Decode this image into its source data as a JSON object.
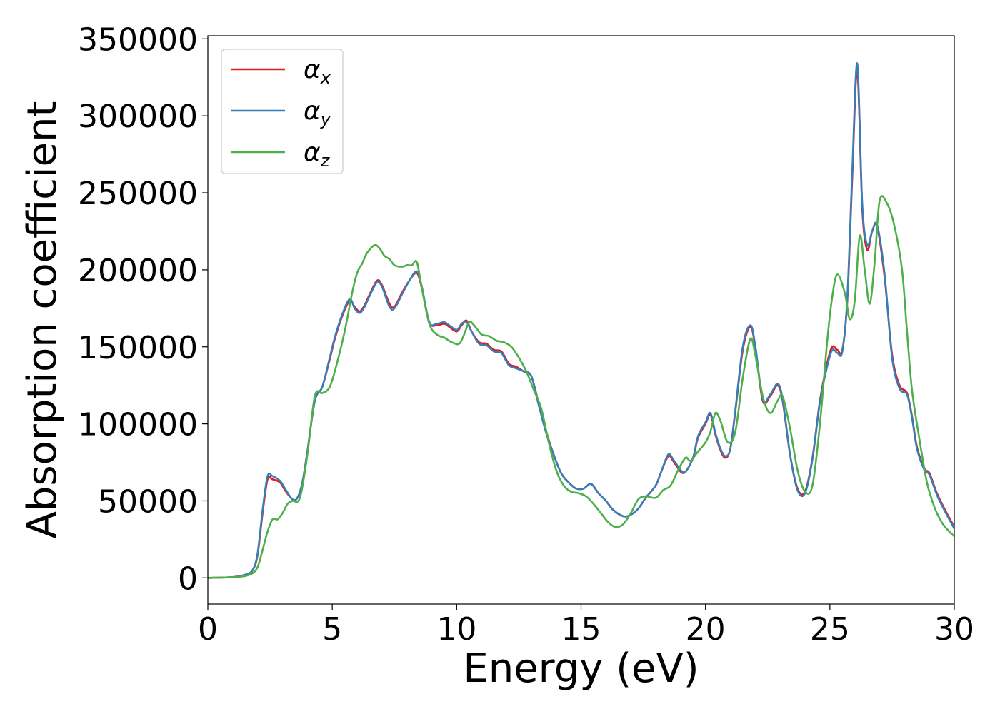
{
  "chart_data": {
    "type": "line",
    "xlabel": "Energy (eV)",
    "ylabel": "Absorption coefficient",
    "xlim": [
      0,
      30
    ],
    "ylim": [
      -17000,
      352000
    ],
    "xticks": [
      "0",
      "5",
      "10",
      "15",
      "20",
      "25",
      "30"
    ],
    "yticks": [
      "0",
      "50000",
      "100000",
      "150000",
      "200000",
      "250000",
      "300000",
      "350000"
    ],
    "grid": false,
    "legend_position": "top-left",
    "series": [
      {
        "name": "α",
        "sub": "x",
        "color": "#e41a1c",
        "x": [
          0,
          1,
          1.5,
          1.8,
          2.0,
          2.2,
          2.4,
          2.6,
          2.9,
          3.1,
          3.4,
          3.6,
          3.8,
          4.0,
          4.3,
          4.6,
          4.9,
          5.1,
          5.4,
          5.7,
          5.9,
          6.1,
          6.3,
          6.5,
          6.8,
          7.0,
          7.3,
          7.5,
          7.8,
          8.1,
          8.4,
          8.6,
          8.9,
          9.2,
          9.5,
          9.7,
          10.0,
          10.2,
          10.4,
          10.6,
          10.9,
          11.2,
          11.5,
          11.8,
          12.1,
          12.4,
          12.7,
          13.0,
          13.3,
          13.6,
          13.9,
          14.2,
          14.5,
          14.8,
          15.1,
          15.4,
          15.7,
          16.0,
          16.3,
          16.7,
          17.0,
          17.3,
          17.6,
          18.0,
          18.2,
          18.5,
          18.7,
          19.0,
          19.2,
          19.5,
          19.7,
          20.0,
          20.2,
          20.4,
          20.6,
          20.8,
          21.0,
          21.2,
          21.5,
          21.8,
          22.0,
          22.3,
          22.6,
          22.9,
          23.1,
          23.4,
          23.7,
          24.0,
          24.3,
          24.6,
          24.9,
          25.1,
          25.3,
          25.5,
          25.7,
          25.9,
          26.1,
          26.3,
          26.5,
          26.7,
          26.9,
          27.2,
          27.5,
          27.8,
          28.1,
          28.3,
          28.5,
          28.8,
          29.0,
          29.3,
          29.6,
          30.0
        ],
        "y": [
          0,
          500,
          2000,
          5000,
          15000,
          42000,
          64000,
          64000,
          62000,
          57000,
          51000,
          52000,
          62000,
          82000,
          115000,
          124000,
          142000,
          155000,
          170000,
          180000,
          176000,
          173000,
          177000,
          184000,
          193000,
          190000,
          178000,
          176000,
          185000,
          193000,
          198000,
          188000,
          166000,
          164000,
          165000,
          163000,
          160000,
          164000,
          167000,
          160000,
          153000,
          152000,
          148000,
          147000,
          139000,
          137000,
          134000,
          131000,
          113000,
          95000,
          80000,
          68000,
          62000,
          58000,
          58000,
          61000,
          55000,
          50000,
          44000,
          40000,
          41000,
          45000,
          52000,
          60000,
          68000,
          79000,
          76000,
          69000,
          69000,
          78000,
          91000,
          100000,
          106000,
          93000,
          83000,
          78000,
          84000,
          108000,
          148000,
          163000,
          150000,
          115000,
          118000,
          125000,
          115000,
          80000,
          58000,
          56000,
          78000,
          115000,
          140000,
          150000,
          148000,
          148000,
          180000,
          260000,
          330000,
          240000,
          213000,
          225000,
          228000,
          195000,
          145000,
          125000,
          120000,
          105000,
          85000,
          71000,
          68000,
          55000,
          45000,
          33000
        ]
      },
      {
        "name": "α",
        "sub": "y",
        "color": "#377eb8",
        "x": [
          0,
          1,
          1.5,
          1.8,
          2.0,
          2.2,
          2.4,
          2.6,
          2.9,
          3.1,
          3.4,
          3.6,
          3.8,
          4.0,
          4.3,
          4.6,
          4.9,
          5.1,
          5.4,
          5.7,
          5.9,
          6.1,
          6.3,
          6.5,
          6.8,
          7.0,
          7.3,
          7.5,
          7.8,
          8.1,
          8.4,
          8.6,
          8.9,
          9.2,
          9.5,
          9.7,
          10.0,
          10.2,
          10.4,
          10.6,
          10.9,
          11.2,
          11.5,
          11.8,
          12.1,
          12.4,
          12.7,
          13.0,
          13.3,
          13.6,
          13.9,
          14.2,
          14.5,
          14.8,
          15.1,
          15.4,
          15.7,
          16.0,
          16.3,
          16.7,
          17.0,
          17.3,
          17.6,
          18.0,
          18.2,
          18.5,
          18.7,
          19.0,
          19.2,
          19.5,
          19.7,
          20.0,
          20.2,
          20.4,
          20.6,
          20.8,
          21.0,
          21.2,
          21.5,
          21.8,
          22.0,
          22.3,
          22.6,
          22.9,
          23.1,
          23.4,
          23.7,
          24.0,
          24.3,
          24.6,
          24.9,
          25.1,
          25.3,
          25.5,
          25.7,
          25.9,
          26.1,
          26.3,
          26.5,
          26.7,
          26.9,
          27.2,
          27.5,
          27.8,
          28.1,
          28.3,
          28.5,
          28.8,
          29.0,
          29.3,
          29.6,
          30.0
        ],
        "y": [
          0,
          500,
          2000,
          5000,
          16000,
          44000,
          66000,
          66000,
          63000,
          58000,
          51000,
          52000,
          62000,
          82000,
          115000,
          124000,
          143000,
          156000,
          171000,
          181000,
          175000,
          172000,
          176000,
          183000,
          192000,
          189000,
          176000,
          175000,
          184000,
          193000,
          199000,
          189000,
          166000,
          165000,
          166000,
          164000,
          161000,
          165000,
          166000,
          160000,
          152000,
          151000,
          147000,
          146000,
          138000,
          136000,
          134000,
          131000,
          112000,
          94000,
          80000,
          68000,
          62000,
          58000,
          58000,
          61000,
          55000,
          50000,
          44000,
          40000,
          41000,
          45000,
          52000,
          60000,
          68000,
          80000,
          77000,
          70000,
          69000,
          78000,
          92000,
          101000,
          107000,
          94000,
          84000,
          79000,
          84000,
          109000,
          150000,
          164000,
          151000,
          116000,
          119000,
          126000,
          116000,
          80000,
          57000,
          55000,
          77000,
          114000,
          138000,
          148000,
          146000,
          147000,
          182000,
          264000,
          334000,
          243000,
          216000,
          225000,
          229000,
          197000,
          143000,
          123000,
          119000,
          104000,
          84000,
          70000,
          67000,
          54000,
          44000,
          32000
        ]
      },
      {
        "name": "α",
        "sub": "z",
        "color": "#4daf4a",
        "x": [
          0,
          1,
          1.5,
          1.8,
          2.0,
          2.2,
          2.4,
          2.6,
          2.8,
          3.0,
          3.2,
          3.4,
          3.7,
          4.0,
          4.3,
          4.6,
          4.9,
          5.2,
          5.5,
          5.8,
          6.0,
          6.2,
          6.4,
          6.7,
          6.9,
          7.1,
          7.3,
          7.5,
          7.8,
          8.0,
          8.2,
          8.4,
          8.6,
          8.9,
          9.2,
          9.5,
          9.8,
          10.1,
          10.3,
          10.5,
          10.7,
          11.0,
          11.3,
          11.6,
          11.9,
          12.2,
          12.5,
          12.8,
          13.1,
          13.4,
          13.7,
          14.0,
          14.3,
          14.6,
          14.9,
          15.2,
          15.5,
          15.8,
          16.1,
          16.4,
          16.7,
          17.0,
          17.3,
          17.6,
          18.0,
          18.3,
          18.6,
          18.9,
          19.2,
          19.4,
          19.7,
          20.0,
          20.2,
          20.4,
          20.6,
          20.9,
          21.2,
          21.5,
          21.8,
          22.0,
          22.3,
          22.6,
          22.9,
          23.1,
          23.4,
          23.7,
          24.0,
          24.3,
          24.6,
          24.9,
          25.1,
          25.3,
          25.6,
          25.8,
          26.0,
          26.2,
          26.4,
          26.6,
          26.8,
          27.0,
          27.3,
          27.6,
          27.9,
          28.1,
          28.3,
          28.6,
          28.9,
          29.2,
          29.5,
          29.8,
          30.0
        ],
        "y": [
          0,
          400,
          1200,
          3000,
          7000,
          18000,
          30000,
          38000,
          38000,
          42000,
          48000,
          50000,
          52000,
          80000,
          118000,
          120000,
          124000,
          140000,
          160000,
          185000,
          198000,
          204000,
          211000,
          216000,
          214000,
          209000,
          207000,
          203000,
          202000,
          203000,
          203000,
          205000,
          188000,
          165000,
          158000,
          156000,
          153000,
          152000,
          158000,
          166000,
          164000,
          158000,
          157000,
          154000,
          153000,
          150000,
          143000,
          134000,
          122000,
          110000,
          88000,
          70000,
          60000,
          56000,
          55000,
          53000,
          48000,
          42000,
          36000,
          33000,
          35000,
          42000,
          51000,
          53000,
          52000,
          57000,
          60000,
          70000,
          78000,
          76000,
          82000,
          88000,
          95000,
          107000,
          102000,
          88000,
          95000,
          130000,
          155000,
          145000,
          118000,
          107000,
          115000,
          118000,
          97000,
          70000,
          56000,
          60000,
          100000,
          155000,
          183000,
          197000,
          185000,
          168000,
          180000,
          222000,
          200000,
          178000,
          205000,
          245000,
          243000,
          228000,
          200000,
          160000,
          122000,
          90000,
          62000,
          46000,
          36000,
          30000,
          27000
        ]
      }
    ]
  }
}
